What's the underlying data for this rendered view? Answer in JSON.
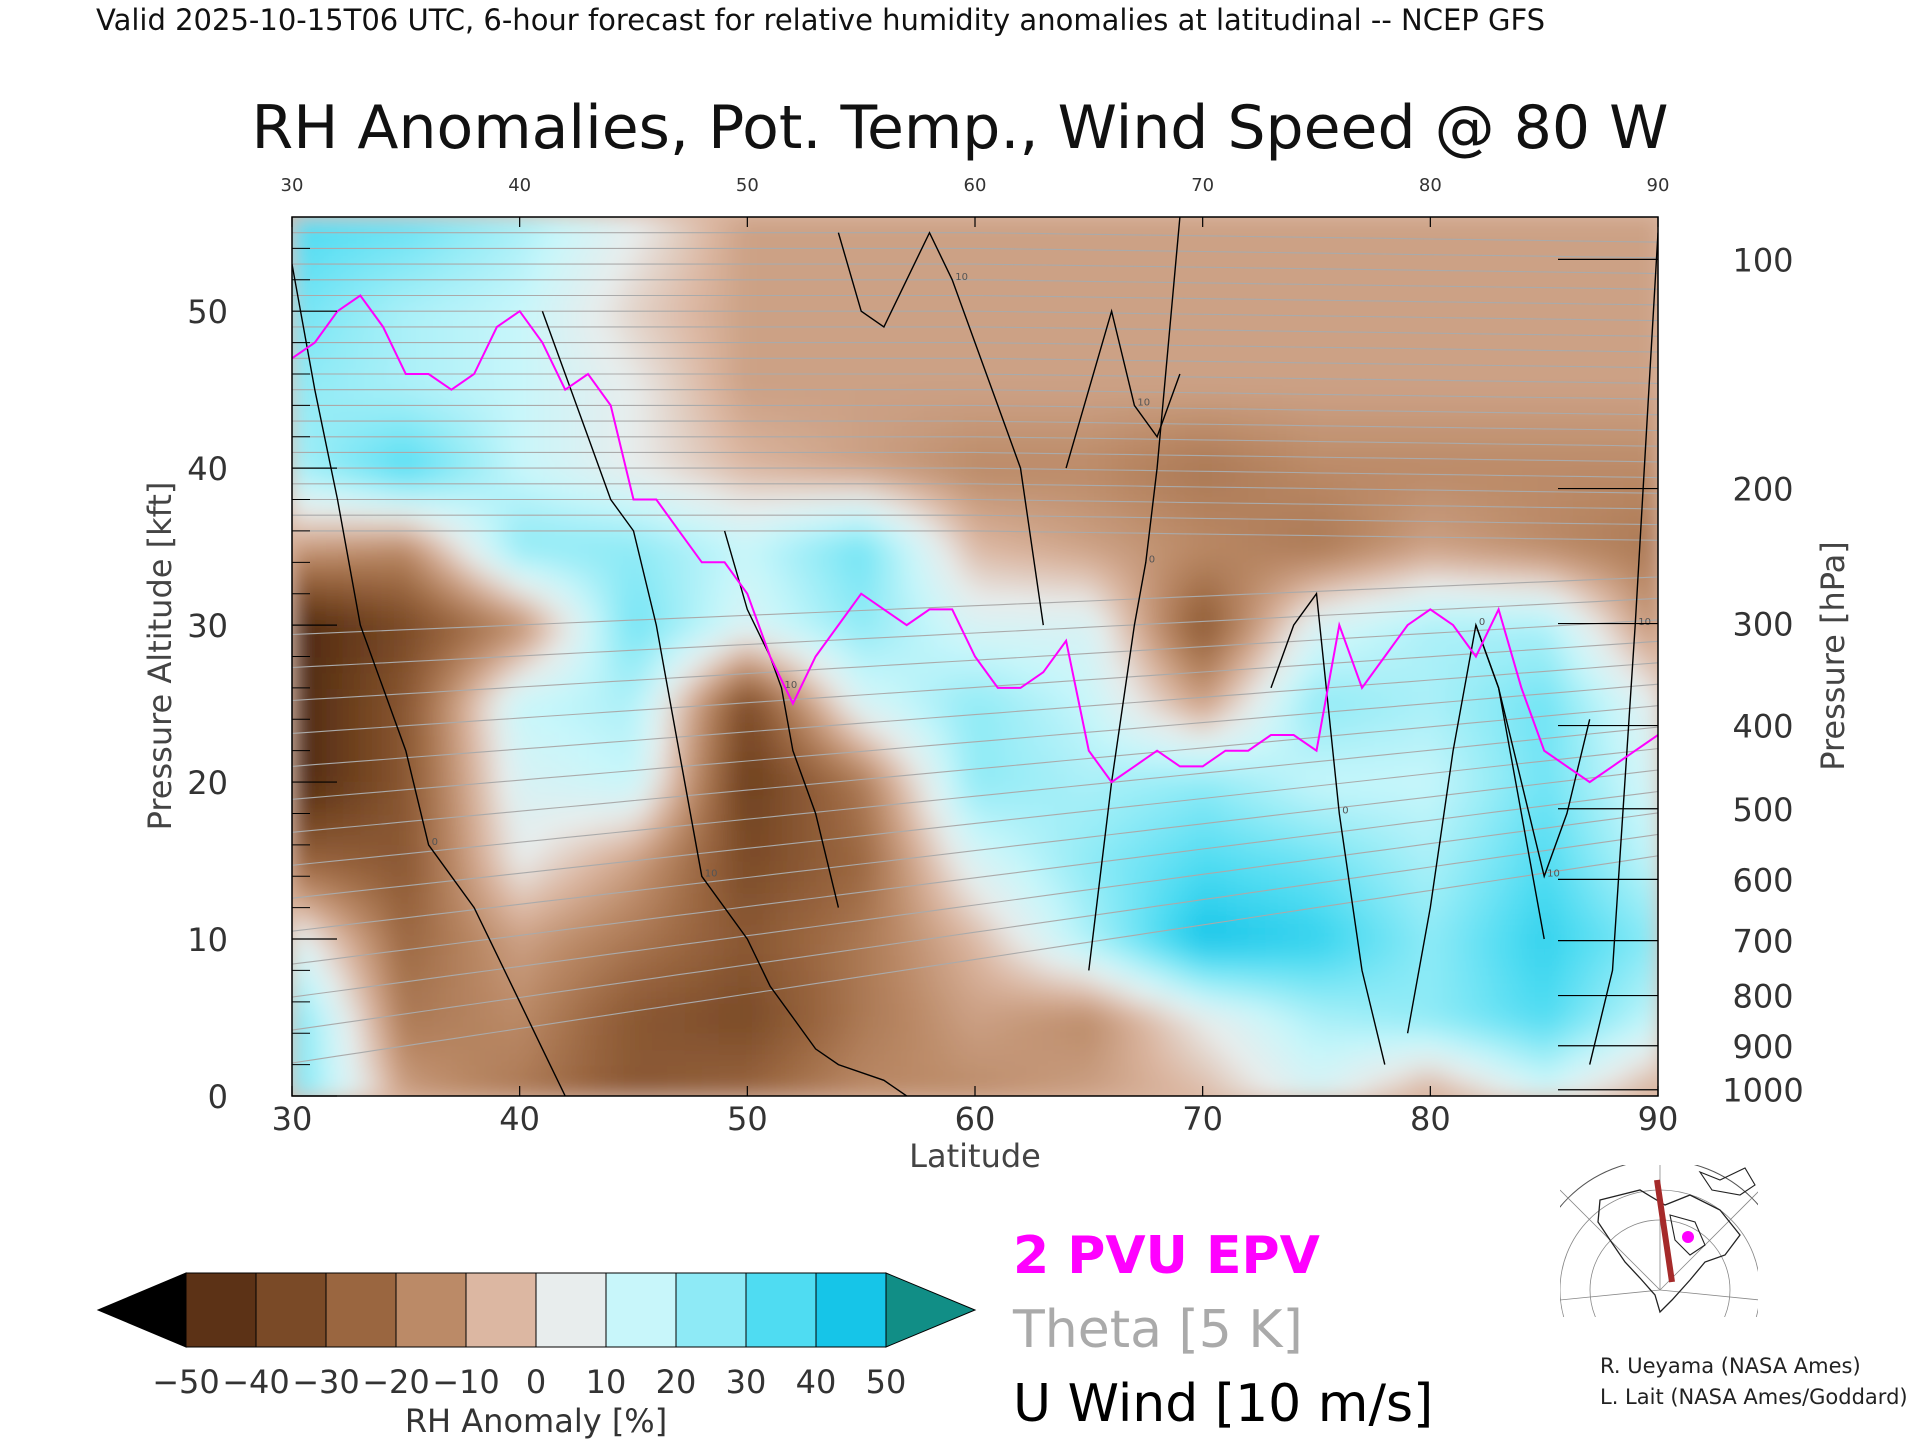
{
  "header": "Valid 2025-10-15T06 UTC, 6-hour forecast for relative humidity anomalies at latitudinal -- NCEP GFS",
  "chart_data": {
    "type": "heatmap",
    "title": "RH Anomalies, Pot. Temp., Wind Speed @ 80 W",
    "xlabel": "Latitude",
    "ylabel": "Pressure Altitude [kft]",
    "y2label": "Pressure [hPa]",
    "xlim": [
      30,
      90
    ],
    "ylim": [
      0,
      56
    ],
    "x_ticks": [
      "30",
      "40",
      "50",
      "60",
      "70",
      "80",
      "90"
    ],
    "y_ticks": [
      "0",
      "10",
      "20",
      "30",
      "40",
      "50"
    ],
    "pressure_ticks": [
      {
        "label": "100",
        "alt_kft": 53.3
      },
      {
        "label": "200",
        "alt_kft": 38.7
      },
      {
        "label": "300",
        "alt_kft": 30.1
      },
      {
        "label": "400",
        "alt_kft": 23.6
      },
      {
        "label": "500",
        "alt_kft": 18.3
      },
      {
        "label": "600",
        "alt_kft": 13.8
      },
      {
        "label": "700",
        "alt_kft": 9.9
      },
      {
        "label": "800",
        "alt_kft": 6.4
      },
      {
        "label": "900",
        "alt_kft": 3.2
      },
      {
        "label": "1000",
        "alt_kft": 0.4
      }
    ],
    "grid": false,
    "lat_nodes": [
      30,
      35,
      40,
      45,
      50,
      55,
      60,
      65,
      70,
      75,
      80,
      85,
      90
    ],
    "alt_nodes_kft": [
      0,
      5,
      10,
      15,
      20,
      25,
      30,
      35,
      40,
      45,
      50,
      55
    ],
    "rh_anomaly_percent": [
      [
        30,
        -10,
        -20,
        -30,
        -25,
        -15,
        -15,
        -10,
        -5,
        10,
        -10,
        10,
        -10
      ],
      [
        30,
        -20,
        -15,
        -30,
        -35,
        -20,
        -10,
        -15,
        5,
        20,
        25,
        35,
        15
      ],
      [
        10,
        -25,
        -10,
        -20,
        -30,
        -20,
        -5,
        20,
        45,
        40,
        25,
        40,
        25
      ],
      [
        -25,
        -30,
        5,
        -10,
        -35,
        -25,
        10,
        25,
        35,
        30,
        20,
        35,
        15
      ],
      [
        -50,
        -30,
        10,
        15,
        -40,
        -20,
        25,
        20,
        25,
        15,
        15,
        30,
        10
      ],
      [
        -50,
        -30,
        15,
        20,
        -35,
        10,
        25,
        15,
        -10,
        25,
        20,
        30,
        5
      ],
      [
        -50,
        -35,
        -15,
        30,
        10,
        25,
        10,
        10,
        -30,
        10,
        20,
        20,
        -15
      ],
      [
        -10,
        -15,
        25,
        25,
        15,
        30,
        -5,
        -10,
        -15,
        -20,
        -10,
        -15,
        -20
      ],
      [
        20,
        35,
        15,
        5,
        -5,
        -10,
        -15,
        -15,
        -20,
        -15,
        -15,
        -15,
        -15
      ],
      [
        25,
        20,
        15,
        5,
        -10,
        -10,
        -10,
        -10,
        -10,
        -10,
        -10,
        -10,
        -10
      ],
      [
        30,
        20,
        15,
        0,
        -10,
        -10,
        -10,
        -10,
        -10,
        -10,
        -10,
        -10,
        -10
      ],
      [
        35,
        30,
        20,
        5,
        -10,
        -10,
        -10,
        -10,
        -10,
        -10,
        -10,
        -10,
        -10
      ]
    ],
    "theta_levels_K": [
      260,
      265,
      270,
      275,
      280,
      285,
      290,
      295,
      300,
      305,
      310,
      315,
      320,
      325,
      330,
      335,
      340,
      345,
      350,
      355,
      360,
      365,
      370,
      375,
      380,
      385,
      390,
      395,
      400,
      405,
      410,
      415,
      420,
      425
    ],
    "u_wind_contours": [
      {
        "level": "0",
        "lat": [
          30,
          31,
          32,
          33,
          35,
          36,
          38,
          39,
          40,
          41,
          42
        ],
        "alt": [
          53,
          45,
          38,
          30,
          22,
          16,
          12,
          9,
          6,
          3,
          0
        ]
      },
      {
        "level": "10",
        "lat": [
          41,
          42,
          43,
          44,
          45,
          46,
          47,
          48,
          50,
          51,
          52,
          53,
          54,
          56,
          57
        ],
        "alt": [
          50,
          46,
          42,
          38,
          36,
          30,
          22,
          14,
          10,
          7,
          5,
          3,
          2,
          1,
          0
        ]
      },
      {
        "level": "10",
        "lat": [
          49,
          50,
          51,
          51.5,
          52,
          53,
          54
        ],
        "alt": [
          36,
          31,
          28,
          26,
          22,
          18,
          12
        ]
      },
      {
        "level": "10",
        "lat": [
          54,
          55,
          56,
          57,
          58,
          59,
          60,
          61,
          62,
          63
        ],
        "alt": [
          55,
          50,
          49,
          52,
          55,
          52,
          48,
          44,
          40,
          30
        ]
      },
      {
        "level": "10",
        "lat": [
          64,
          65,
          66,
          67,
          68,
          69
        ],
        "alt": [
          40,
          45,
          50,
          44,
          42,
          46
        ]
      },
      {
        "level": "0",
        "lat": [
          69,
          68.5,
          68,
          67.5,
          67,
          66,
          65
        ],
        "alt": [
          56,
          48,
          40,
          34,
          30,
          20,
          8
        ]
      },
      {
        "level": "0",
        "lat": [
          73,
          74,
          75,
          76,
          77,
          78
        ],
        "alt": [
          26,
          30,
          32,
          18,
          8,
          2
        ]
      },
      {
        "level": "0",
        "lat": [
          79,
          80,
          81,
          82,
          83,
          84,
          85
        ],
        "alt": [
          4,
          12,
          22,
          30,
          26,
          18,
          10
        ]
      },
      {
        "level": "10",
        "lat": [
          82,
          83,
          84,
          85,
          86,
          87
        ],
        "alt": [
          30,
          26,
          20,
          14,
          18,
          24
        ]
      },
      {
        "level": "10",
        "lat": [
          87,
          88,
          89,
          90
        ],
        "alt": [
          2,
          8,
          30,
          55
        ]
      }
    ],
    "pv2_tropopause": {
      "label": "2 PVU EPV",
      "lat": [
        30,
        31,
        32,
        33,
        34,
        35,
        36,
        37,
        38,
        39,
        40,
        41,
        42,
        43,
        44,
        45,
        46,
        47,
        48,
        49,
        50,
        51,
        52,
        53,
        54,
        55,
        56,
        57,
        58,
        59,
        60,
        61,
        62,
        63,
        64,
        65,
        66,
        67,
        68,
        69,
        70,
        71,
        72,
        73,
        74,
        75,
        76,
        77,
        78,
        79,
        80,
        81,
        82,
        83,
        84,
        85,
        86,
        87,
        88,
        89,
        90
      ],
      "alt": [
        47,
        48,
        50,
        51,
        49,
        46,
        46,
        45,
        46,
        49,
        50,
        48,
        45,
        46,
        44,
        38,
        38,
        36,
        34,
        34,
        32,
        28,
        25,
        28,
        30,
        32,
        31,
        30,
        31,
        31,
        28,
        26,
        26,
        27,
        29,
        22,
        20,
        21,
        22,
        21,
        21,
        22,
        22,
        23,
        23,
        22,
        30,
        26,
        28,
        30,
        31,
        30,
        28,
        31,
        26,
        22,
        21,
        20,
        21,
        22,
        23
      ]
    }
  },
  "colorbar": {
    "label": "RH Anomaly [%]",
    "ticks": [
      "−50",
      "−40",
      "−30",
      "−20",
      "−10",
      "0",
      "10",
      "20",
      "30",
      "40",
      "50"
    ],
    "colors": [
      "#3a1e0c",
      "#5c3216",
      "#7a4a27",
      "#9a6640",
      "#bb8a67",
      "#dcb7a2",
      "#e8eded",
      "#c8f6fa",
      "#8eeaf6",
      "#4fdcf2",
      "#16c5e8",
      "#0a8da8"
    ],
    "under_color": "#000000",
    "over_color": "#118e86"
  },
  "legend": {
    "pv": {
      "label": "2 PVU EPV",
      "color": "#ff00ff"
    },
    "theta": {
      "label": "Theta [5 K]",
      "color": "#aaaaaa"
    },
    "wind": {
      "label": "U Wind [10 m/s]",
      "color": "#000000"
    }
  },
  "credits": [
    "R. Ueyama (NASA Ames)",
    "L. Lait (NASA Ames/Goddard)"
  ],
  "inset_map": {
    "marker_color": "#ff00ff",
    "line_color": "#a52a2a"
  }
}
